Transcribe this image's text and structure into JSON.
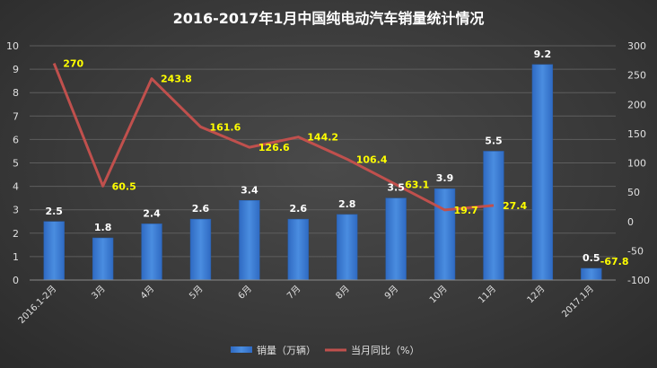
{
  "chart_data": {
    "type": "bar",
    "title": "2016-2017年1月中国纯电动汽车销量统计情况",
    "categories": [
      "2016.1-2月",
      "3月",
      "4月",
      "5月",
      "6月",
      "7月",
      "8月",
      "9月",
      "10月",
      "11月",
      "12月",
      "2017.1月"
    ],
    "series": [
      {
        "name": "销量（万辆）",
        "type": "bar",
        "axis": "left",
        "values": [
          2.5,
          1.8,
          2.4,
          2.6,
          3.4,
          2.6,
          2.8,
          3.5,
          3.9,
          5.5,
          9.2,
          0.5
        ],
        "value_labels": [
          "2.5",
          "1.8",
          "2.4",
          "2.6",
          "3.4",
          "2.6",
          "2.8",
          "3.5",
          "3.9",
          "5.5",
          "9.2",
          "0.5"
        ]
      },
      {
        "name": "当月同比（%）",
        "type": "line",
        "axis": "right",
        "values": [
          270,
          60.5,
          243.8,
          161.6,
          126.6,
          144.2,
          106.4,
          63.1,
          19.7,
          27.4,
          null,
          -67.8
        ],
        "value_labels": [
          "270",
          "60.5",
          "243.8",
          "161.6",
          "126.6",
          "144.2",
          "106.4",
          "63.1",
          "19.7",
          "27.4",
          "",
          "-67.8"
        ]
      }
    ],
    "y_left": {
      "min": 0,
      "max": 10,
      "ticks": [
        "0",
        "1",
        "2",
        "3",
        "4",
        "5",
        "6",
        "7",
        "8",
        "9",
        "10"
      ]
    },
    "y_right": {
      "min": -100,
      "max": 300,
      "ticks": [
        "-100",
        "-50",
        "0",
        "50",
        "100",
        "150",
        "200",
        "250",
        "300"
      ]
    },
    "grid": true,
    "legend_position": "bottom",
    "colors": {
      "bar": "#3a7bd5",
      "line": "#c0504d",
      "line_label": "#ffff00"
    }
  }
}
